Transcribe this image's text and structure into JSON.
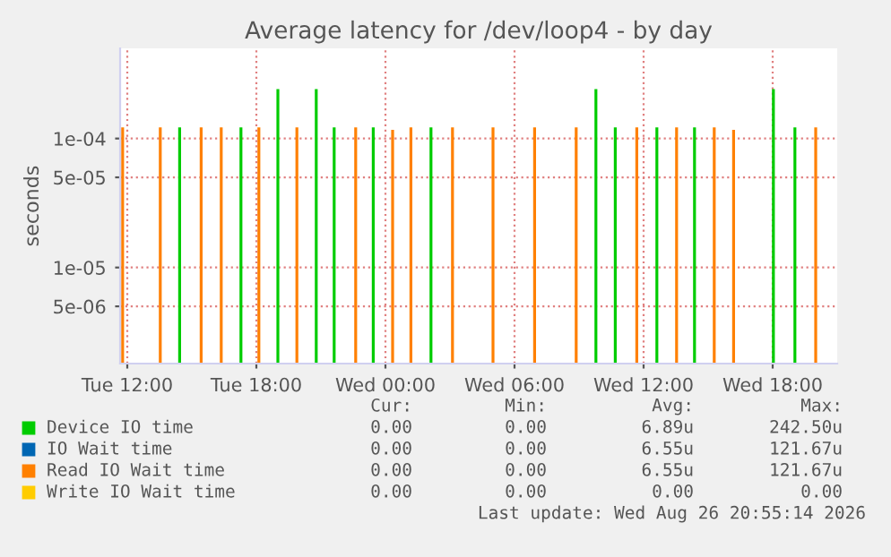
{
  "chart_data": {
    "type": "bar",
    "title": "Average latency for /dev/loop4 - by day",
    "ylabel": "seconds",
    "log": "y",
    "grid": true,
    "legend": "bottom",
    "xlim": [
      "2026-08-25T11:40",
      "2026-08-26T21:00"
    ],
    "ylim": [
      1.8e-06,
      0.0005
    ],
    "xticks": [
      {
        "value": "2026-08-25T12:00",
        "label": "Tue 12:00"
      },
      {
        "value": "2026-08-25T18:00",
        "label": "Tue 18:00"
      },
      {
        "value": "2026-08-26T00:00",
        "label": "Wed 00:00"
      },
      {
        "value": "2026-08-26T06:00",
        "label": "Wed 06:00"
      },
      {
        "value": "2026-08-26T12:00",
        "label": "Wed 12:00"
      },
      {
        "value": "2026-08-26T18:00",
        "label": "Wed 18:00"
      }
    ],
    "yticks": [
      {
        "value": 0.0001,
        "label": "1e-04"
      },
      {
        "value": 5e-05,
        "label": "5e-05"
      },
      {
        "value": 1e-05,
        "label": "1e-05"
      },
      {
        "value": 5e-06,
        "label": "5e-06"
      }
    ],
    "series": [
      {
        "name": "Device IO time",
        "color": "#00cc00",
        "x": [
          "2026-08-25T14:26",
          "2026-08-25T17:17",
          "2026-08-25T19:00",
          "2026-08-25T20:47",
          "2026-08-25T21:37",
          "2026-08-25T23:26",
          "2026-08-26T02:07",
          "2026-08-26T09:47",
          "2026-08-26T10:41",
          "2026-08-26T12:37",
          "2026-08-26T14:22",
          "2026-08-26T18:02",
          "2026-08-26T19:02"
        ],
        "values": [
          0.00012,
          0.00012,
          0.00024,
          0.00024,
          0.00012,
          0.00012,
          0.00012,
          0.00024,
          0.00012,
          0.00012,
          0.00012,
          0.00024,
          0.00012
        ]
      },
      {
        "name": "IO Wait time",
        "color": "#0066b3"
      },
      {
        "name": "Read IO Wait time",
        "color": "#ff8000",
        "x": [
          "2026-08-25T11:47",
          "2026-08-25T13:32",
          "2026-08-25T15:26",
          "2026-08-25T16:22",
          "2026-08-25T18:07",
          "2026-08-25T19:53",
          "2026-08-25T22:37",
          "2026-08-26T00:20",
          "2026-08-26T01:11",
          "2026-08-26T03:07",
          "2026-08-26T05:00",
          "2026-08-26T06:56",
          "2026-08-26T08:52",
          "2026-08-26T11:41",
          "2026-08-26T13:32",
          "2026-08-26T15:17",
          "2026-08-26T16:11",
          "2026-08-26T20:00"
        ],
        "values": [
          0.00012,
          0.00012,
          0.00012,
          0.00012,
          0.00012,
          0.00012,
          0.00012,
          0.000115,
          0.00012,
          0.00012,
          0.00012,
          0.00012,
          0.00012,
          0.00012,
          0.00012,
          0.00012,
          0.000115,
          0.00012
        ]
      },
      {
        "name": "Write IO Wait time",
        "color": "#ffcc00"
      }
    ],
    "annotations": [
      "Cur:",
      "Min:",
      "Avg:",
      "Max:",
      "0.00",
      "0.00",
      "6.89u",
      "242.50u",
      "0.00",
      "0.00",
      "6.55u",
      "121.67u",
      "0.00",
      "0.00",
      "6.55u",
      "121.67u",
      "0.00",
      "0.00",
      "0.00",
      "0.00",
      "Last update: Wed Aug 26 20:55:14 2026"
    ]
  }
}
